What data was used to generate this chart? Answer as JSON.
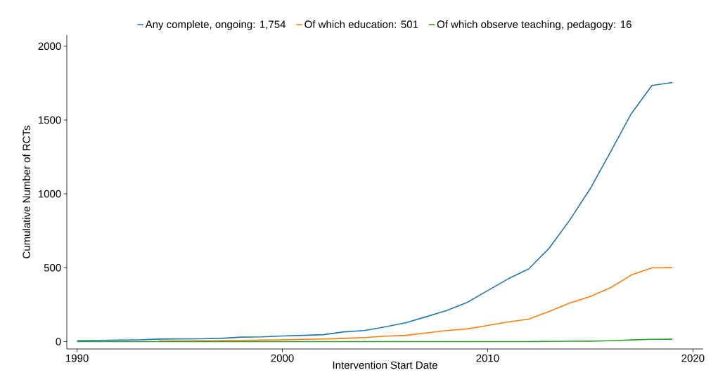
{
  "chart_data": {
    "type": "line",
    "xlabel": "Intervention Start Date",
    "ylabel": "Cumulative Number of RCTs",
    "x": [
      1990,
      1991,
      1992,
      1993,
      1994,
      1995,
      1996,
      1997,
      1998,
      1999,
      2000,
      2001,
      2002,
      2003,
      2004,
      2005,
      2006,
      2007,
      2008,
      2009,
      2010,
      2011,
      2012,
      2013,
      2014,
      2015,
      2016,
      2017,
      2018,
      2019
    ],
    "series": [
      {
        "name": "Any complete, ongoing: 1,754",
        "color": "#1f77b4",
        "values": [
          5,
          8,
          10,
          12,
          17,
          18,
          19,
          22,
          30,
          32,
          38,
          42,
          47,
          66,
          75,
          100,
          127,
          168,
          210,
          265,
          345,
          425,
          492,
          633,
          823,
          1036,
          1288,
          1544,
          1734,
          1754
        ]
      },
      {
        "name": "Of which education: 501",
        "color": "#ff7f0e",
        "values": [
          null,
          null,
          null,
          null,
          4,
          4,
          5,
          5,
          8,
          10,
          12,
          15,
          18,
          22,
          27,
          37,
          42,
          58,
          75,
          86,
          109,
          133,
          152,
          204,
          261,
          305,
          366,
          451,
          499,
          501
        ]
      },
      {
        "name": "Of which observe teaching, pedagogy: 16",
        "color": "#2ca02c",
        "values": [
          0,
          0,
          0,
          0,
          0,
          0,
          0,
          0,
          0,
          0,
          0,
          0,
          0,
          0,
          0,
          0,
          0,
          0,
          0,
          0,
          0,
          0,
          0,
          1,
          2,
          3,
          6,
          11,
          15,
          16
        ]
      }
    ],
    "xlim": [
      1989.5,
      2020.5
    ],
    "ylim": [
      -50,
      2075
    ],
    "xticks": [
      1990,
      2000,
      2010,
      2020
    ],
    "yticks": [
      0,
      500,
      1000,
      1500,
      2000
    ],
    "grid": false,
    "legend": "top",
    "marker": "none",
    "line_style": "solid"
  }
}
